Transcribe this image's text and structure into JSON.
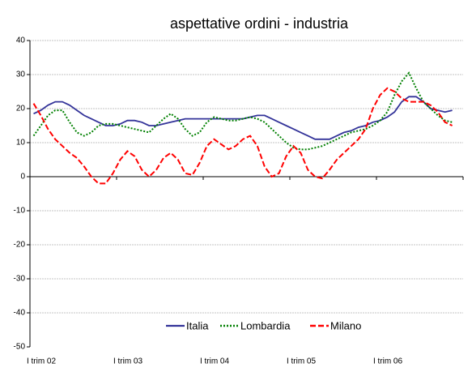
{
  "chart_data": {
    "type": "line",
    "title": "aspettative ordini - industria",
    "categories": [
      "I trim 02",
      null,
      null,
      null,
      null,
      null,
      null,
      null,
      null,
      null,
      null,
      null,
      "I trim 03",
      null,
      null,
      null,
      null,
      null,
      null,
      null,
      null,
      null,
      null,
      null,
      "I trim 04",
      null,
      null,
      null,
      null,
      null,
      null,
      null,
      null,
      null,
      null,
      null,
      "I trim 05",
      null,
      null,
      null,
      null,
      null,
      null,
      null,
      null,
      null,
      null,
      null,
      "I trim 06",
      null,
      null,
      null,
      null,
      null,
      null,
      null,
      null,
      null,
      null,
      null
    ],
    "ylim": [
      -50,
      40
    ],
    "yticks": [
      -50,
      -40,
      -30,
      -20,
      -10,
      0,
      10,
      20,
      30,
      40
    ],
    "grid": true,
    "legend": "bottom",
    "series": [
      {
        "name": "Italia",
        "color": "#333399",
        "style": "solid",
        "values": [
          18.5,
          19.5,
          21,
          22,
          22,
          21,
          19.5,
          18,
          17,
          16,
          15,
          15,
          15.5,
          16.5,
          16.5,
          16,
          15,
          15,
          15.5,
          16,
          16.5,
          17,
          17,
          17,
          17,
          17,
          17,
          17,
          17,
          17,
          17.5,
          18,
          18,
          17,
          16,
          15,
          14,
          13,
          12,
          11,
          11,
          11,
          12,
          13,
          13.5,
          14.5,
          15,
          16,
          16.5,
          17.5,
          19,
          22,
          23.5,
          23.5,
          22,
          20,
          19.5,
          19,
          19.5,
          null
        ]
      },
      {
        "name": "Lombardia",
        "color": "#008000",
        "style": "dotted",
        "values": [
          12,
          15,
          18,
          19.5,
          19.5,
          16,
          13,
          12,
          13,
          15,
          15.5,
          15.5,
          15,
          14.5,
          14,
          13.5,
          13,
          15,
          17,
          18.5,
          17,
          14,
          12,
          13,
          16,
          17.5,
          17,
          16.5,
          16.5,
          17,
          17.5,
          17,
          16,
          14,
          12,
          10,
          8.5,
          8,
          8,
          8.5,
          9,
          10,
          11,
          12,
          13,
          13.5,
          14,
          15,
          16.5,
          19,
          24,
          28,
          30.5,
          26,
          22,
          20,
          18,
          16.5,
          16,
          null
        ]
      },
      {
        "name": "Milano",
        "color": "#ff0000",
        "style": "dashed",
        "values": [
          21.5,
          18,
          14,
          11,
          9,
          7,
          5.5,
          3,
          0,
          -2,
          -2,
          1,
          5,
          7.5,
          6,
          2,
          0,
          2,
          5.5,
          7,
          5,
          1,
          0.5,
          4,
          9,
          11,
          9.5,
          8,
          9,
          11,
          12,
          9,
          3,
          0,
          1,
          6,
          9,
          7,
          2,
          0,
          -0.5,
          2,
          5,
          7,
          9,
          11,
          14,
          20,
          24,
          26,
          25,
          23,
          22,
          22,
          22,
          21,
          19,
          16,
          15,
          null
        ]
      }
    ]
  }
}
